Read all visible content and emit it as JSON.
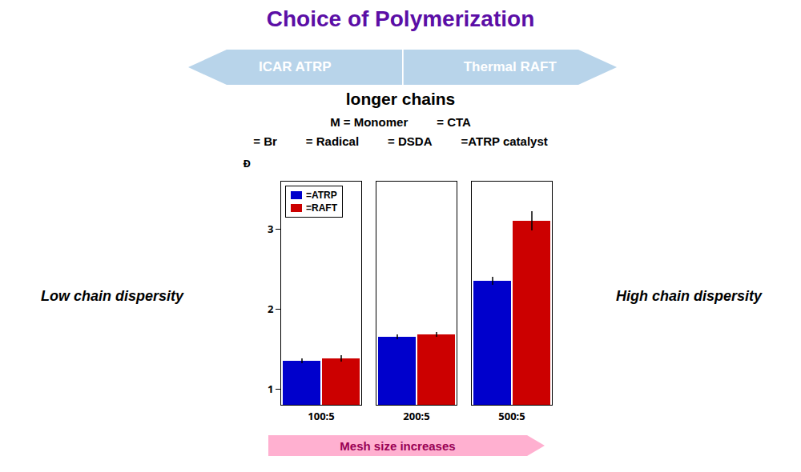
{
  "chart_data": {
    "type": "bar",
    "title": "Choice of Polymerization",
    "categories": [
      "100:5",
      "200:5",
      "500:5"
    ],
    "series": [
      {
        "name": "=ATRP",
        "color": "#0000cc",
        "values": [
          1.35,
          1.65,
          2.35
        ],
        "errors": [
          0.03,
          0.03,
          0.05
        ]
      },
      {
        "name": "=RAFT",
        "color": "#cc0000",
        "values": [
          1.38,
          1.68,
          3.1
        ],
        "errors": [
          0.04,
          0.03,
          0.12
        ]
      }
    ],
    "ylabel": "Đ",
    "ylim": [
      0.8,
      3.6
    ],
    "yticks": [
      1,
      2,
      3
    ],
    "legend": "upper left",
    "annotations": [
      "ICAR ATRP",
      "Thermal RAFT",
      "longer chains",
      "M = Monomer",
      "= CTA",
      "= Br",
      "= Radical",
      "= DSDA",
      "=ATRP catalyst",
      "Mesh size increases",
      "Low chain dispersity",
      "High chain dispersity"
    ]
  }
}
